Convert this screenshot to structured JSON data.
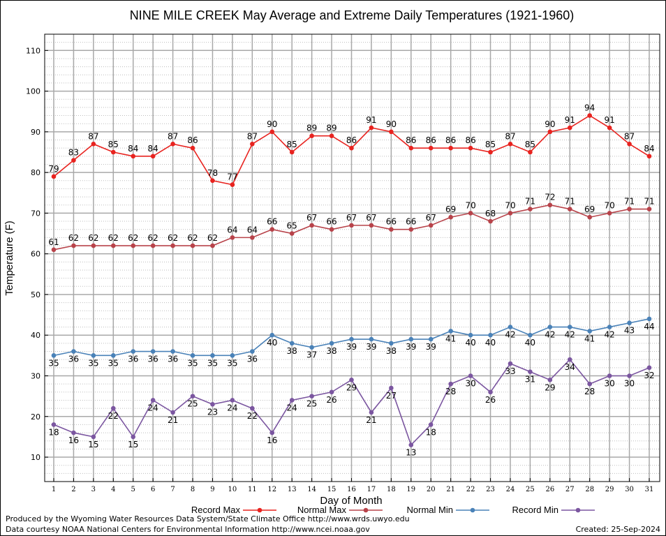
{
  "chart_data": {
    "type": "line",
    "title": "NINE MILE CREEK May Average and Extreme Daily Temperatures (1921-1960)",
    "xlabel": "Day of Month",
    "ylabel": "Temperature (F)",
    "xlim": [
      1,
      31
    ],
    "ylim": [
      4,
      114
    ],
    "yticks": [
      10,
      20,
      30,
      40,
      50,
      60,
      70,
      80,
      90,
      100,
      110
    ],
    "x": [
      1,
      2,
      3,
      4,
      5,
      6,
      7,
      8,
      9,
      10,
      11,
      12,
      13,
      14,
      15,
      16,
      17,
      18,
      19,
      20,
      21,
      22,
      23,
      24,
      25,
      26,
      27,
      28,
      29,
      30,
      31
    ],
    "grid": true,
    "legend_position": "bottom",
    "series": [
      {
        "name": "Record Max",
        "color": "#e8231f",
        "label_pos": "above",
        "values": [
          79,
          83,
          87,
          85,
          84,
          84,
          87,
          86,
          78,
          77,
          87,
          90,
          85,
          89,
          89,
          86,
          91,
          90,
          86,
          86,
          86,
          86,
          85,
          87,
          85,
          90,
          91,
          94,
          91,
          87,
          84
        ]
      },
      {
        "name": "Normal Max",
        "color": "#b8434a",
        "label_pos": "above",
        "values": [
          61,
          62,
          62,
          62,
          62,
          62,
          62,
          62,
          62,
          64,
          64,
          66,
          65,
          67,
          66,
          67,
          67,
          66,
          66,
          67,
          69,
          70,
          68,
          70,
          71,
          72,
          71,
          69,
          70,
          71,
          71
        ]
      },
      {
        "name": "Normal Min",
        "color": "#4a82b8",
        "label_pos": "below",
        "values": [
          35,
          36,
          35,
          35,
          36,
          36,
          36,
          35,
          35,
          35,
          36,
          40,
          38,
          37,
          38,
          39,
          39,
          38,
          39,
          39,
          41,
          40,
          40,
          42,
          40,
          42,
          42,
          41,
          42,
          43,
          44
        ]
      },
      {
        "name": "Record Min",
        "color": "#7b56a0",
        "label_pos": "below",
        "values": [
          18,
          16,
          15,
          22,
          15,
          24,
          21,
          25,
          23,
          24,
          22,
          16,
          24,
          25,
          26,
          29,
          21,
          27,
          13,
          18,
          28,
          30,
          26,
          33,
          31,
          29,
          34,
          28,
          30,
          30,
          32
        ]
      }
    ]
  },
  "footer": {
    "produced_by": "Produced by the Wyoming Water Resources Data System/State Climate Office http://www.wrds.uwyo.edu",
    "courtesy": "Data courtesy NOAA National Centers for Environmental Information http://www.ncei.noaa.gov",
    "created": "Created:  25-Sep-2024"
  }
}
